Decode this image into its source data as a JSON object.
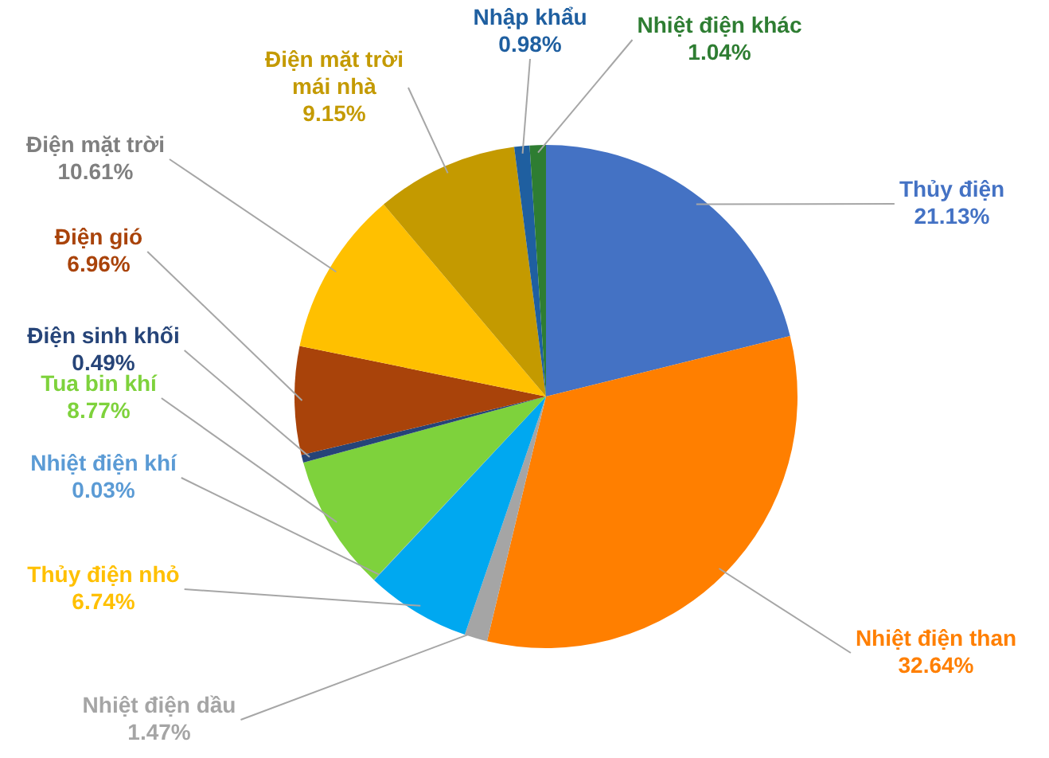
{
  "chart_data": {
    "type": "pie",
    "categories": [
      "Thủy điện",
      "Nhiệt điện than",
      "Nhiệt điện dầu",
      "Thủy điện nhỏ",
      "Nhiệt điện khí",
      "Tua bin khí",
      "Điện sinh khối",
      "Điện gió",
      "Điện mặt trời",
      "Điện mặt trời mái nhà",
      "Nhập khẩu",
      "Nhiệt điện khác"
    ],
    "values": [
      21.13,
      32.64,
      1.47,
      6.74,
      0.03,
      8.77,
      0.49,
      6.96,
      10.61,
      9.15,
      0.98,
      1.04
    ],
    "colors": [
      "#4472c4",
      "#ff7f00",
      "#a5a5a5",
      "#00a8f0",
      "#5b9bd5",
      "#7ed23c",
      "#264478",
      "#a9430a",
      "#ffc000",
      "#c49a00",
      "#1f5fa0",
      "#2e7d32"
    ],
    "value_labels": [
      "21.13%",
      "32.64%",
      "1.47%",
      "6.74%",
      "0.03%",
      "8.77%",
      "0.49%",
      "6.96%",
      "10.61%",
      "9.15%",
      "0.98%",
      "1.04%"
    ],
    "legend": false
  }
}
